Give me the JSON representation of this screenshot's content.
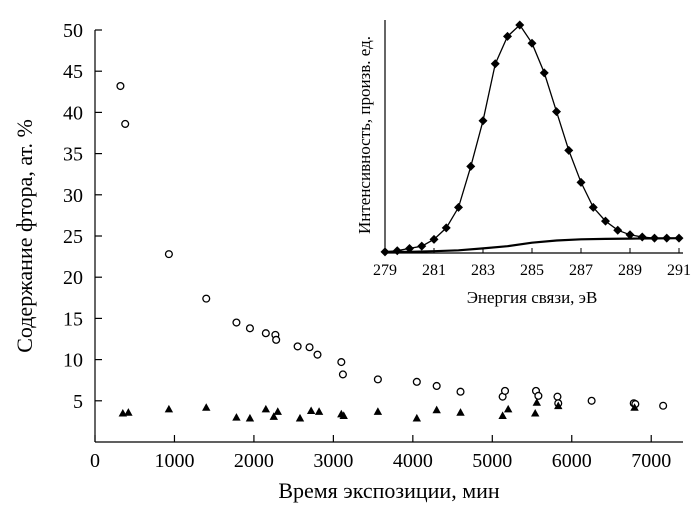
{
  "chart_data": [
    {
      "type": "scatter",
      "title": "",
      "xlabel": "Время экспозиции, мин",
      "ylabel": "Содержание фтора, ат. %",
      "xlim": [
        0,
        7400
      ],
      "ylim": [
        0,
        50
      ],
      "xticks": [
        0,
        1000,
        2000,
        3000,
        4000,
        5000,
        6000,
        7000
      ],
      "yticks": [
        5,
        10,
        15,
        20,
        25,
        30,
        35,
        40,
        45,
        50
      ],
      "grid": false,
      "series": [
        {
          "marker": "open-circle-with-error",
          "points": [
            {
              "x": 320,
              "y": 43.2,
              "err": 0.9
            },
            {
              "x": 380,
              "y": 38.6,
              "err": 0.6
            },
            {
              "x": 930,
              "y": 22.8,
              "err": 0.7
            },
            {
              "x": 1400,
              "y": 17.4,
              "err": 0.4
            },
            {
              "x": 1780,
              "y": 14.5,
              "err": 0.3
            },
            {
              "x": 1950,
              "y": 13.8,
              "err": 0.3
            },
            {
              "x": 2150,
              "y": 13.2,
              "err": 0.3
            },
            {
              "x": 2270,
              "y": 13.0,
              "err": 0.4
            },
            {
              "x": 2280,
              "y": 12.4,
              "err": 0.4
            },
            {
              "x": 2550,
              "y": 11.6,
              "err": 0.6
            },
            {
              "x": 2700,
              "y": 11.5,
              "err": 0.4
            },
            {
              "x": 2800,
              "y": 10.6,
              "err": 0.4
            },
            {
              "x": 3100,
              "y": 9.7,
              "err": 0.4
            },
            {
              "x": 3120,
              "y": 8.2,
              "err": 0.4
            },
            {
              "x": 3560,
              "y": 7.6,
              "err": 0.5
            },
            {
              "x": 4050,
              "y": 7.3,
              "err": 0.4
            },
            {
              "x": 4300,
              "y": 6.8,
              "err": 0.4
            },
            {
              "x": 4600,
              "y": 6.1,
              "err": 0.4
            },
            {
              "x": 5130,
              "y": 5.5,
              "err": 0.6
            },
            {
              "x": 5160,
              "y": 6.2,
              "err": 0.5
            },
            {
              "x": 5550,
              "y": 6.2,
              "err": 0.5
            },
            {
              "x": 5580,
              "y": 5.6,
              "err": 0.4
            },
            {
              "x": 5820,
              "y": 5.5,
              "err": 0.5
            },
            {
              "x": 5830,
              "y": 4.7,
              "err": 0.4
            },
            {
              "x": 6250,
              "y": 5.0,
              "err": 0.4
            },
            {
              "x": 6780,
              "y": 4.7,
              "err": 0.4
            },
            {
              "x": 6800,
              "y": 4.6,
              "err": 0.4
            },
            {
              "x": 7150,
              "y": 4.4,
              "err": 0.4
            }
          ]
        },
        {
          "marker": "filled-triangle",
          "points": [
            {
              "x": 350,
              "y": 3.5
            },
            {
              "x": 420,
              "y": 3.6
            },
            {
              "x": 930,
              "y": 4.0
            },
            {
              "x": 1400,
              "y": 4.2,
              "err": 0.6
            },
            {
              "x": 1780,
              "y": 3.0
            },
            {
              "x": 1950,
              "y": 2.9
            },
            {
              "x": 2150,
              "y": 4.0
            },
            {
              "x": 2250,
              "y": 3.1
            },
            {
              "x": 2300,
              "y": 3.7
            },
            {
              "x": 2580,
              "y": 2.9
            },
            {
              "x": 2720,
              "y": 3.8
            },
            {
              "x": 2820,
              "y": 3.7
            },
            {
              "x": 3100,
              "y": 3.4
            },
            {
              "x": 3130,
              "y": 3.2
            },
            {
              "x": 3560,
              "y": 3.7
            },
            {
              "x": 4050,
              "y": 2.9
            },
            {
              "x": 4300,
              "y": 3.9
            },
            {
              "x": 4600,
              "y": 3.6
            },
            {
              "x": 5130,
              "y": 3.2
            },
            {
              "x": 5200,
              "y": 4.0
            },
            {
              "x": 5540,
              "y": 3.5
            },
            {
              "x": 5560,
              "y": 4.8
            },
            {
              "x": 5830,
              "y": 4.4
            },
            {
              "x": 6790,
              "y": 4.2
            }
          ]
        }
      ]
    },
    {
      "type": "line",
      "title": "",
      "xlabel": "Энергия связи, эВ",
      "ylabel": "Интенсивность, произв. ед.",
      "xlim": [
        279,
        291
      ],
      "xticks": [
        279,
        281,
        283,
        285,
        287,
        289,
        291
      ],
      "ylim": [
        0,
        1
      ],
      "grid": false,
      "series": [
        {
          "marker": "filled-diamond",
          "x": [
            279,
            279.5,
            280,
            280.5,
            281,
            281.5,
            282,
            282.5,
            283,
            283.5,
            284,
            284.5,
            285,
            285.5,
            286,
            286.5,
            287,
            287.5,
            288,
            288.5,
            289,
            289.5,
            290,
            290.5,
            291
          ],
          "y": [
            0.005,
            0.01,
            0.02,
            0.03,
            0.06,
            0.11,
            0.2,
            0.38,
            0.58,
            0.83,
            0.95,
            1.0,
            0.92,
            0.79,
            0.62,
            0.45,
            0.31,
            0.2,
            0.14,
            0.1,
            0.08,
            0.07,
            0.065,
            0.065,
            0.065
          ]
        },
        {
          "marker": "none",
          "x": [
            279,
            280,
            281,
            282,
            283,
            284,
            285,
            286,
            287,
            288,
            289,
            290,
            291
          ],
          "y": [
            0.005,
            0.005,
            0.008,
            0.012,
            0.02,
            0.03,
            0.045,
            0.055,
            0.06,
            0.062,
            0.063,
            0.064,
            0.065
          ]
        }
      ]
    }
  ]
}
